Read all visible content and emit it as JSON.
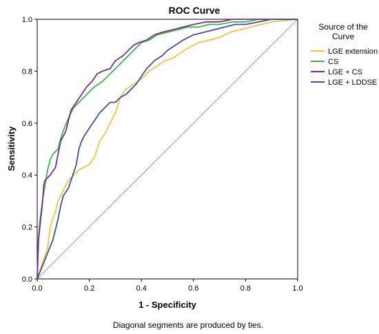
{
  "chart_data": {
    "type": "line",
    "title": "ROC Curve",
    "xlabel": "1 - Specificity",
    "ylabel": "Sensitivity",
    "xlim": [
      0,
      1
    ],
    "ylim": [
      0,
      1
    ],
    "xticks": [
      "0.0",
      "0.2",
      "0.4",
      "0.6",
      "0.8",
      "1.0"
    ],
    "yticks": [
      "0.0",
      "0.2",
      "0.4",
      "0.6",
      "0.8",
      "1.0"
    ],
    "grid": false,
    "legend": {
      "title": "Source of the Curve",
      "placement": "right"
    },
    "footnote": "Diagonal segments are produced by ties.",
    "series": [
      {
        "name": "LGE extension",
        "color": "#f5c242",
        "points": [
          [
            0,
            0
          ],
          [
            0.02,
            0.06
          ],
          [
            0.04,
            0.12
          ],
          [
            0.05,
            0.2
          ],
          [
            0.07,
            0.26
          ],
          [
            0.08,
            0.3
          ],
          [
            0.1,
            0.34
          ],
          [
            0.12,
            0.38
          ],
          [
            0.14,
            0.4
          ],
          [
            0.16,
            0.42
          ],
          [
            0.18,
            0.43
          ],
          [
            0.2,
            0.44
          ],
          [
            0.22,
            0.47
          ],
          [
            0.24,
            0.53
          ],
          [
            0.26,
            0.56
          ],
          [
            0.28,
            0.6
          ],
          [
            0.3,
            0.64
          ],
          [
            0.32,
            0.7
          ],
          [
            0.34,
            0.73
          ],
          [
            0.37,
            0.75
          ],
          [
            0.4,
            0.77
          ],
          [
            0.43,
            0.8
          ],
          [
            0.46,
            0.82
          ],
          [
            0.49,
            0.84
          ],
          [
            0.52,
            0.85
          ],
          [
            0.55,
            0.87
          ],
          [
            0.58,
            0.89
          ],
          [
            0.62,
            0.91
          ],
          [
            0.66,
            0.92
          ],
          [
            0.7,
            0.93
          ],
          [
            0.74,
            0.95
          ],
          [
            0.78,
            0.96
          ],
          [
            0.82,
            0.97
          ],
          [
            0.86,
            0.98
          ],
          [
            0.9,
            0.99
          ],
          [
            0.95,
            0.995
          ],
          [
            1,
            1
          ]
        ]
      },
      {
        "name": "CS",
        "color": "#3cb44b",
        "points": [
          [
            0,
            0
          ],
          [
            0.005,
            0.16
          ],
          [
            0.01,
            0.22
          ],
          [
            0.02,
            0.3
          ],
          [
            0.03,
            0.36
          ],
          [
            0.04,
            0.42
          ],
          [
            0.05,
            0.46
          ],
          [
            0.06,
            0.48
          ],
          [
            0.08,
            0.5
          ],
          [
            0.09,
            0.54
          ],
          [
            0.1,
            0.57
          ],
          [
            0.12,
            0.62
          ],
          [
            0.14,
            0.66
          ],
          [
            0.16,
            0.68
          ],
          [
            0.18,
            0.7
          ],
          [
            0.2,
            0.72
          ],
          [
            0.22,
            0.74
          ],
          [
            0.25,
            0.76
          ],
          [
            0.28,
            0.79
          ],
          [
            0.3,
            0.81
          ],
          [
            0.32,
            0.83
          ],
          [
            0.34,
            0.85
          ],
          [
            0.36,
            0.87
          ],
          [
            0.38,
            0.89
          ],
          [
            0.4,
            0.91
          ],
          [
            0.43,
            0.92
          ],
          [
            0.46,
            0.94
          ],
          [
            0.5,
            0.95
          ],
          [
            0.54,
            0.96
          ],
          [
            0.58,
            0.97
          ],
          [
            0.62,
            0.97
          ],
          [
            0.66,
            0.98
          ],
          [
            0.7,
            0.98
          ],
          [
            0.75,
            0.99
          ],
          [
            0.8,
            0.99
          ],
          [
            0.85,
            1.0
          ],
          [
            0.9,
            1.0
          ],
          [
            1,
            1
          ]
        ]
      },
      {
        "name": "LGE + CS",
        "color": "#7b2d8e",
        "points": [
          [
            0,
            0
          ],
          [
            0.005,
            0.15
          ],
          [
            0.01,
            0.2
          ],
          [
            0.02,
            0.29
          ],
          [
            0.025,
            0.36
          ],
          [
            0.03,
            0.38
          ],
          [
            0.05,
            0.4
          ],
          [
            0.07,
            0.43
          ],
          [
            0.09,
            0.53
          ],
          [
            0.11,
            0.57
          ],
          [
            0.13,
            0.65
          ],
          [
            0.15,
            0.68
          ],
          [
            0.17,
            0.71
          ],
          [
            0.19,
            0.74
          ],
          [
            0.21,
            0.76
          ],
          [
            0.23,
            0.79
          ],
          [
            0.25,
            0.8
          ],
          [
            0.28,
            0.81
          ],
          [
            0.3,
            0.84
          ],
          [
            0.33,
            0.86
          ],
          [
            0.35,
            0.88
          ],
          [
            0.37,
            0.9
          ],
          [
            0.39,
            0.91
          ],
          [
            0.42,
            0.92
          ],
          [
            0.45,
            0.94
          ],
          [
            0.48,
            0.95
          ],
          [
            0.52,
            0.96
          ],
          [
            0.56,
            0.97
          ],
          [
            0.6,
            0.98
          ],
          [
            0.65,
            0.99
          ],
          [
            0.7,
            0.99
          ],
          [
            0.75,
            1.0
          ],
          [
            0.8,
            1.0
          ],
          [
            0.9,
            1.0
          ],
          [
            1,
            1
          ]
        ]
      },
      {
        "name": "LGE + LDDSE",
        "color": "#3f4ea3",
        "points": [
          [
            0,
            0
          ],
          [
            0.02,
            0.05
          ],
          [
            0.04,
            0.1
          ],
          [
            0.06,
            0.15
          ],
          [
            0.07,
            0.19
          ],
          [
            0.08,
            0.23
          ],
          [
            0.09,
            0.28
          ],
          [
            0.1,
            0.32
          ],
          [
            0.12,
            0.35
          ],
          [
            0.13,
            0.38
          ],
          [
            0.15,
            0.44
          ],
          [
            0.16,
            0.5
          ],
          [
            0.17,
            0.53
          ],
          [
            0.18,
            0.55
          ],
          [
            0.2,
            0.58
          ],
          [
            0.22,
            0.61
          ],
          [
            0.24,
            0.64
          ],
          [
            0.26,
            0.66
          ],
          [
            0.28,
            0.68
          ],
          [
            0.3,
            0.68
          ],
          [
            0.32,
            0.7
          ],
          [
            0.34,
            0.71
          ],
          [
            0.36,
            0.73
          ],
          [
            0.38,
            0.75
          ],
          [
            0.4,
            0.78
          ],
          [
            0.42,
            0.81
          ],
          [
            0.45,
            0.84
          ],
          [
            0.48,
            0.86
          ],
          [
            0.5,
            0.88
          ],
          [
            0.53,
            0.9
          ],
          [
            0.56,
            0.92
          ],
          [
            0.6,
            0.94
          ],
          [
            0.64,
            0.95
          ],
          [
            0.68,
            0.96
          ],
          [
            0.72,
            0.97
          ],
          [
            0.76,
            0.98
          ],
          [
            0.8,
            0.98
          ],
          [
            0.85,
            0.99
          ],
          [
            0.9,
            1.0
          ],
          [
            1,
            1
          ]
        ]
      }
    ]
  }
}
